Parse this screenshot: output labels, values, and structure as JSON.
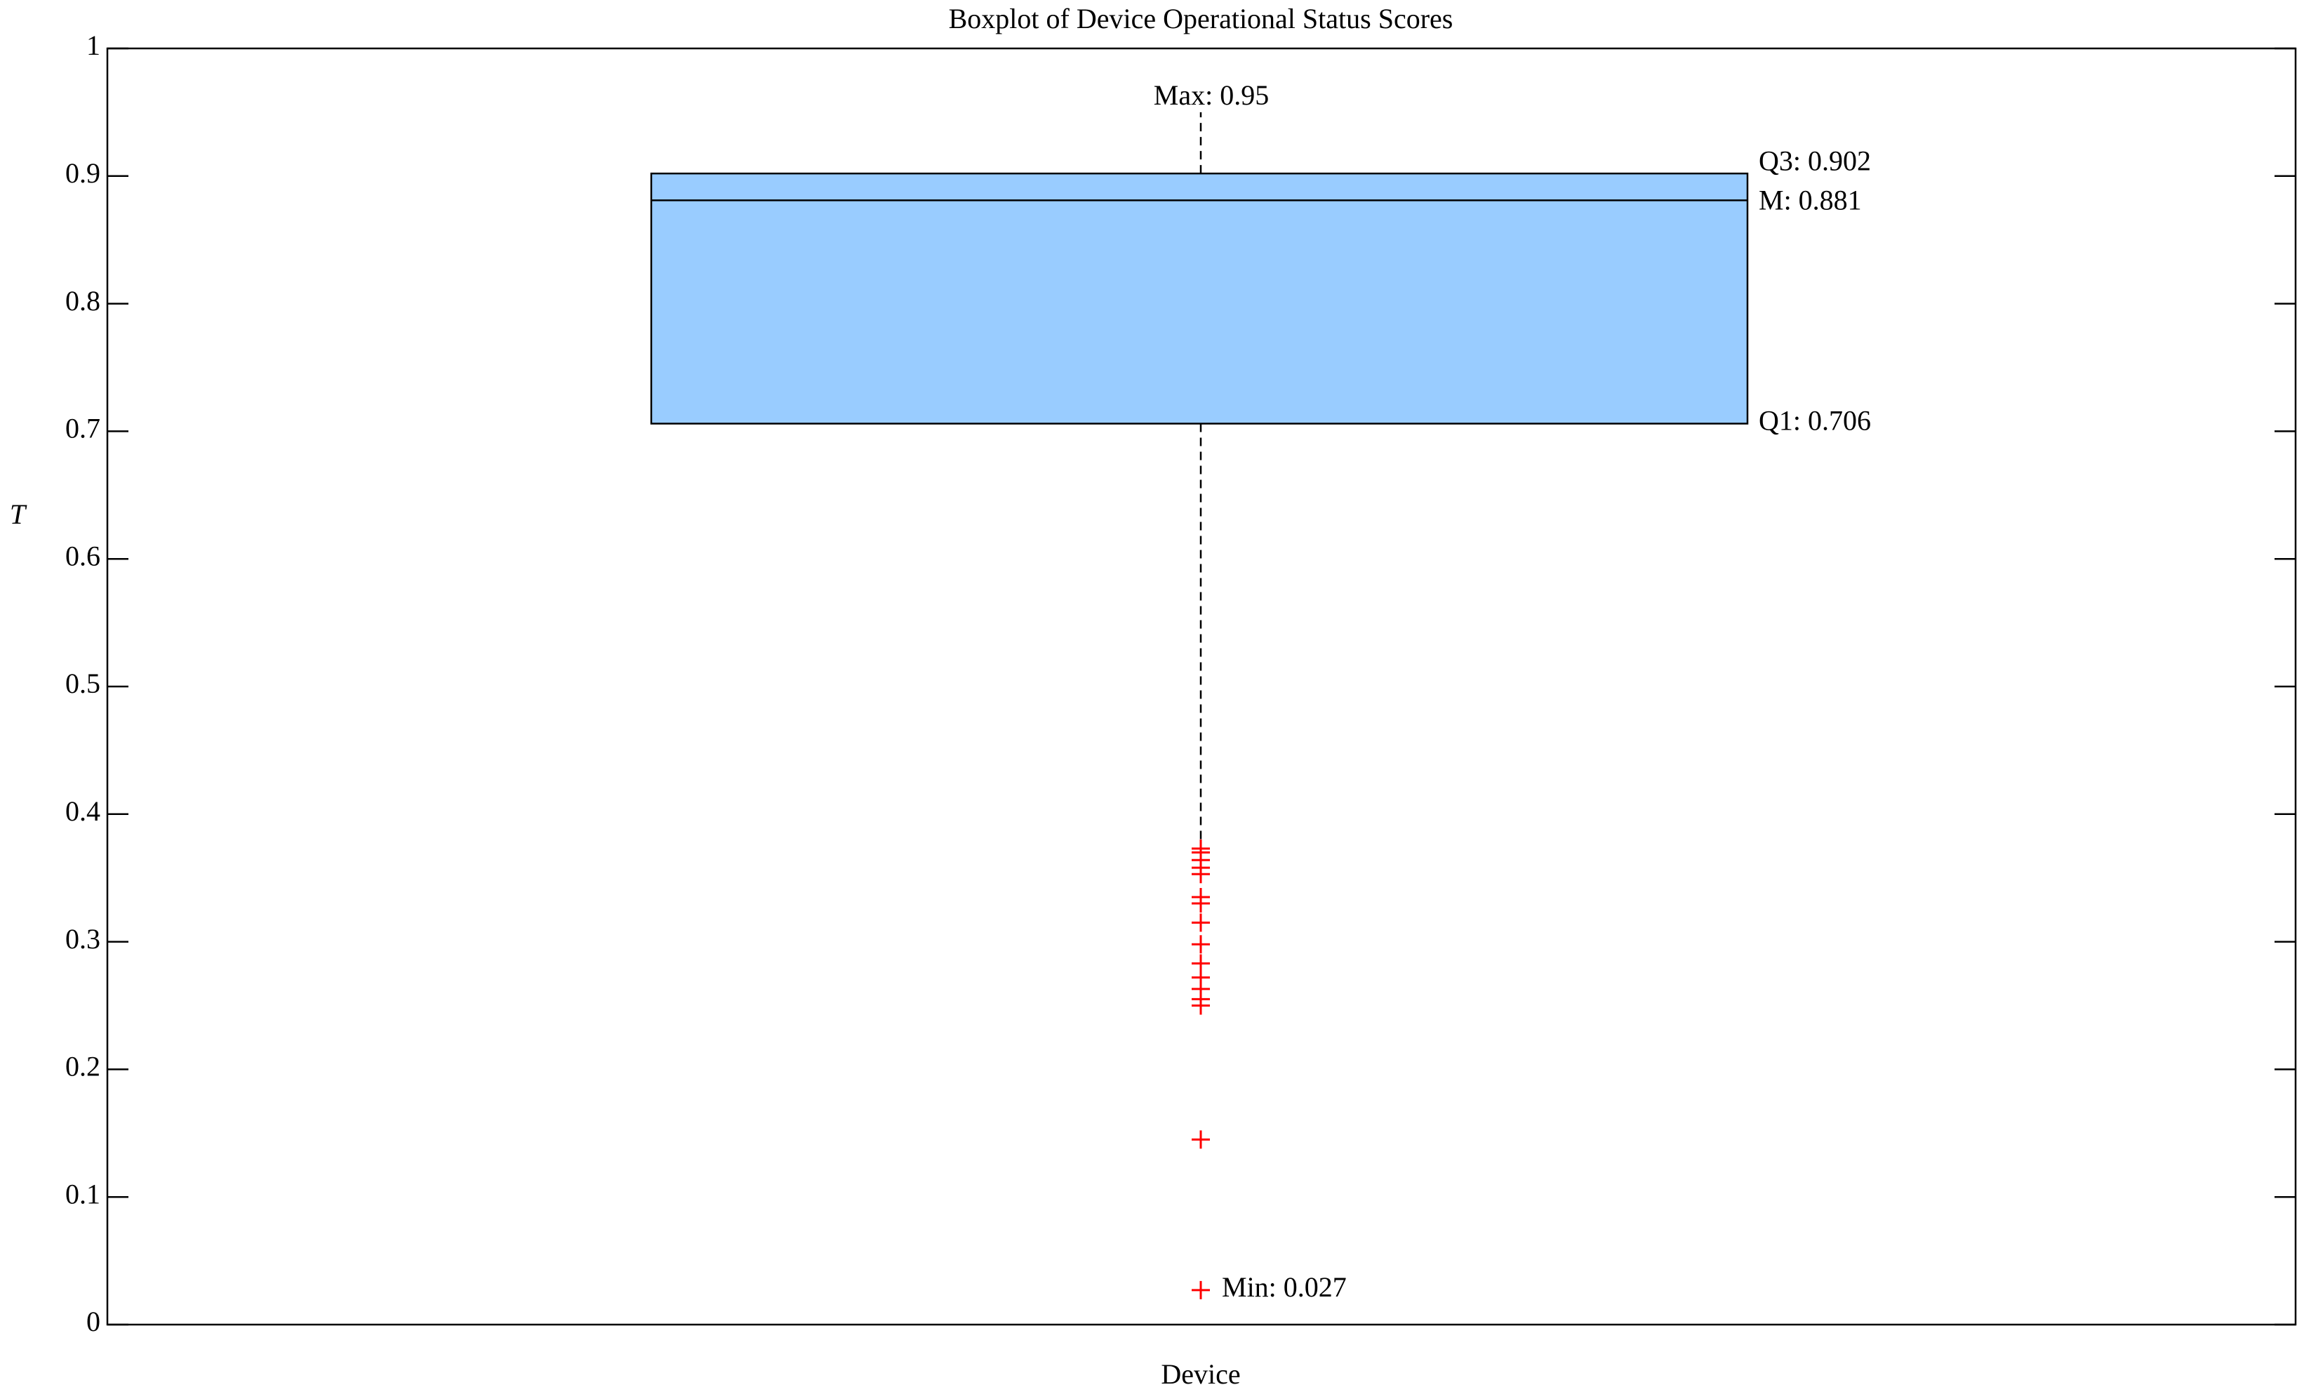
{
  "chart_data": {
    "type": "box",
    "title": "Boxplot of Device Operational Status Scores",
    "y_label": "T",
    "categories": [
      "Device"
    ],
    "box": {
      "max": 0.95,
      "q3": 0.902,
      "median": 0.881,
      "q1": 0.706,
      "lower_whisker": 0.373,
      "min": 0.027
    },
    "value_labels": {
      "max": "Max: 0.95",
      "q3": "Q3: 0.902",
      "median": "M: 0.881",
      "q1": "Q1: 0.706",
      "min": "Min: 0.027"
    },
    "outliers": [
      0.373,
      0.37,
      0.364,
      0.358,
      0.353,
      0.335,
      0.33,
      0.315,
      0.298,
      0.283,
      0.272,
      0.263,
      0.255,
      0.25,
      0.145
    ],
    "box_color": "#99ccff",
    "outlier_color": "#ff0000",
    "ylim": [
      0,
      1
    ],
    "yticks": [
      0,
      0.1,
      0.2,
      0.3,
      0.4,
      0.5,
      0.6,
      0.7,
      0.8,
      0.9,
      1
    ]
  }
}
